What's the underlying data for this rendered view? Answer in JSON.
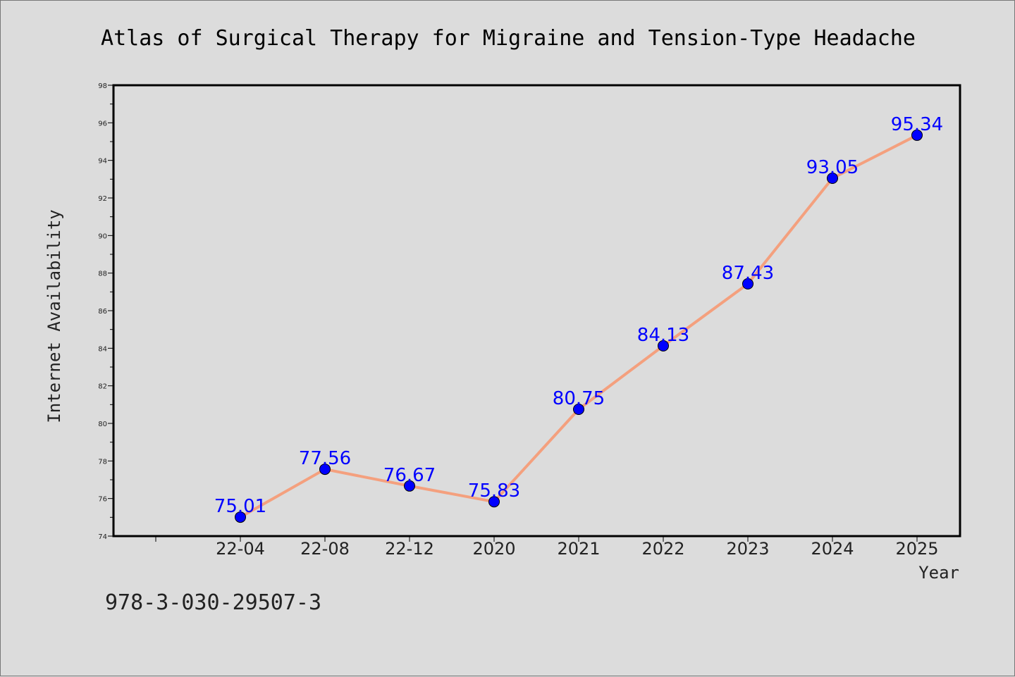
{
  "chart_data": {
    "type": "line",
    "title": "Atlas of Surgical Therapy for Migraine and Tension-Type Headache",
    "xlabel": "Year",
    "ylabel": "Internet Availability",
    "categories": [
      "22-04",
      "22-08",
      "22-12",
      "2020",
      "2021",
      "2022",
      "2023",
      "2024",
      "2025"
    ],
    "series": [
      {
        "values": [
          75.01,
          77.56,
          76.67,
          75.83,
          80.75,
          84.13,
          87.43,
          93.05,
          95.34
        ]
      }
    ],
    "data_labels": [
      "75.01",
      "77.56",
      "76.67",
      "75.83",
      "80.75",
      "84.13",
      "87.43",
      "93.05",
      "95.34"
    ],
    "ylim": [
      74,
      98
    ],
    "yticks": [
      "74",
      "76",
      "78",
      "80",
      "82",
      "84",
      "86",
      "88",
      "90",
      "92",
      "94",
      "96",
      "98"
    ],
    "grid": false,
    "legend": "none",
    "colors": {
      "line": "#f4a07e",
      "marker": "#0000ff",
      "label": "#0000ff",
      "background": "#dcdcdc"
    }
  },
  "footer": {
    "isbn": "978-3-030-29507-3"
  }
}
